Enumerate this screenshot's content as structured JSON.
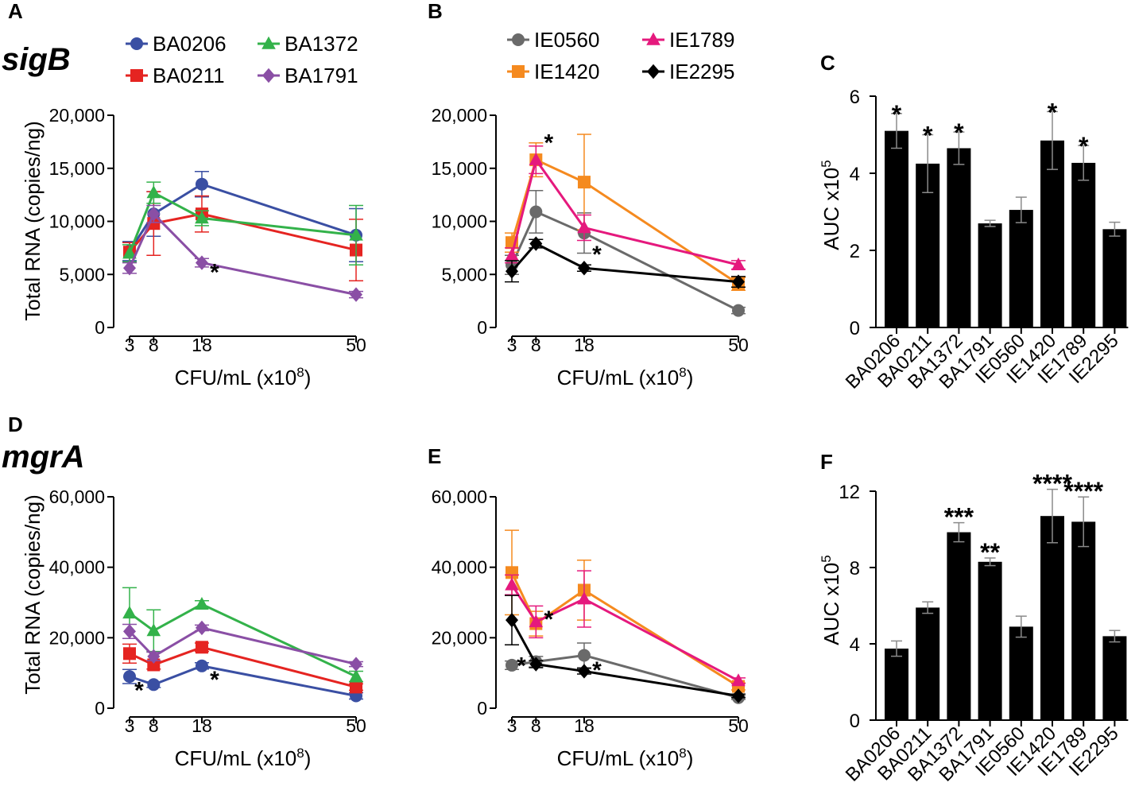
{
  "figure": {
    "row_labels": [
      "sigB",
      "mgrA"
    ],
    "colors": {
      "BA0206": "#3a4fa3",
      "BA0211": "#e52421",
      "BA1372": "#33b24a",
      "BA1791": "#8a4fa5",
      "IE0560": "#6a6a6a",
      "IE1420": "#f58a1f",
      "IE1789": "#e5197d",
      "IE2295": "#000000",
      "bar": "#000000"
    }
  },
  "chart_data": [
    {
      "id": "A",
      "letter": "A",
      "type": "line",
      "title": "",
      "xlabel": "CFU/mL (x10",
      "xlabel_sup": "8",
      "xlabel_end": ")",
      "ylabel": "Total RNA (copies/ng)",
      "x": [
        3,
        8,
        18,
        50
      ],
      "x_ticks": [
        "3",
        "8",
        "18",
        "50"
      ],
      "xlim": [
        3,
        50
      ],
      "ylim": [
        0,
        20000
      ],
      "y_ticks": [
        0,
        5000,
        10000,
        15000,
        20000
      ],
      "y_tick_labels": [
        "0",
        "5,000",
        "10,000",
        "15,000",
        "20,000"
      ],
      "legend": [
        "BA0206",
        "BA0211",
        "BA1372",
        "BA1791"
      ],
      "series": [
        {
          "name": "BA0206",
          "marker": "circle",
          "values": [
            7200,
            10700,
            13500,
            8700
          ],
          "err": [
            900,
            2100,
            1200,
            2500
          ]
        },
        {
          "name": "BA0211",
          "marker": "square",
          "values": [
            7100,
            9800,
            10700,
            7300
          ],
          "err": [
            900,
            3000,
            1700,
            2900
          ]
        },
        {
          "name": "BA1372",
          "marker": "triangle",
          "values": [
            7000,
            12700,
            10300,
            8700
          ],
          "err": [
            800,
            1000,
            700,
            2800
          ]
        },
        {
          "name": "BA1791",
          "marker": "diamond",
          "values": [
            5600,
            10700,
            6100,
            3100
          ],
          "err": [
            500,
            800,
            400,
            300
          ]
        }
      ],
      "annotations": [
        {
          "x": 18,
          "y": 6100,
          "text": "*"
        }
      ]
    },
    {
      "id": "B",
      "letter": "B",
      "type": "line",
      "title": "",
      "xlabel": "CFU/mL (x10",
      "xlabel_sup": "8",
      "xlabel_end": ")",
      "ylabel": "",
      "x": [
        3,
        8,
        18,
        50
      ],
      "x_ticks": [
        "3",
        "8",
        "18",
        "50"
      ],
      "xlim": [
        3,
        50
      ],
      "ylim": [
        0,
        20000
      ],
      "y_ticks": [
        0,
        5000,
        10000,
        15000,
        20000
      ],
      "y_tick_labels": [
        "0",
        "5,000",
        "10,000",
        "15,000",
        "20,000"
      ],
      "legend": [
        "IE0560",
        "IE1420",
        "IE1789",
        "IE2295"
      ],
      "series": [
        {
          "name": "IE0560",
          "marker": "circle",
          "values": [
            5900,
            10900,
            8900,
            1600
          ],
          "err": [
            900,
            2000,
            1900,
            300
          ]
        },
        {
          "name": "IE1420",
          "marker": "square",
          "values": [
            8000,
            15800,
            13700,
            4100
          ],
          "err": [
            900,
            1600,
            4500,
            600
          ]
        },
        {
          "name": "IE1789",
          "marker": "triangle",
          "values": [
            6800,
            15800,
            9400,
            5900
          ],
          "err": [
            700,
            1300,
            1200,
            400
          ]
        },
        {
          "name": "IE2295",
          "marker": "diamond",
          "values": [
            5300,
            7900,
            5600,
            4300
          ],
          "err": [
            1000,
            400,
            300,
            500
          ]
        }
      ],
      "annotations": [
        {
          "x": 8,
          "y": 18300,
          "text": "*"
        },
        {
          "x": 18,
          "y": 7800,
          "text": "*"
        }
      ]
    },
    {
      "id": "C",
      "letter": "C",
      "type": "bar",
      "title": "",
      "xlabel": "",
      "ylabel": "AUC x10",
      "ylabel_sup": "5",
      "categories": [
        "BA0206",
        "BA0211",
        "BA1372",
        "BA1791",
        "IE0560",
        "IE1420",
        "IE1789",
        "IE2295"
      ],
      "values": [
        5.1,
        4.25,
        4.65,
        2.7,
        3.05,
        4.85,
        4.27,
        2.55
      ],
      "err": [
        0.45,
        0.75,
        0.42,
        0.08,
        0.33,
        0.75,
        0.45,
        0.18
      ],
      "stars": [
        "*",
        "*",
        "*",
        "",
        "",
        "*",
        "*",
        ""
      ],
      "ylim": [
        0,
        6
      ],
      "y_ticks": [
        0,
        2,
        4,
        6
      ],
      "y_tick_labels": [
        "0",
        "2",
        "4",
        "6"
      ]
    },
    {
      "id": "D",
      "letter": "D",
      "type": "line",
      "title": "",
      "xlabel": "CFU/mL (x10",
      "xlabel_sup": "8",
      "xlabel_end": ")",
      "ylabel": "Total RNA (copies/ng)",
      "x": [
        3,
        8,
        18,
        50
      ],
      "x_ticks": [
        "3",
        "8",
        "18",
        "50"
      ],
      "xlim": [
        3,
        50
      ],
      "ylim": [
        0,
        60000
      ],
      "y_ticks": [
        0,
        20000,
        40000,
        60000
      ],
      "y_tick_labels": [
        "0",
        "20,000",
        "40,000",
        "60,000"
      ],
      "legend": [],
      "series": [
        {
          "name": "BA0206",
          "marker": "circle",
          "values": [
            9000,
            6700,
            12000,
            3500
          ],
          "err": [
            2000,
            800,
            900,
            900
          ]
        },
        {
          "name": "BA0211",
          "marker": "square",
          "values": [
            15500,
            12300,
            17300,
            6000
          ],
          "err": [
            2700,
            1200,
            1200,
            900
          ]
        },
        {
          "name": "BA1372",
          "marker": "triangle",
          "values": [
            27000,
            22000,
            29500,
            9000
          ],
          "err": [
            7200,
            5900,
            1000,
            1500
          ]
        },
        {
          "name": "BA1791",
          "marker": "diamond",
          "values": [
            21800,
            14700,
            22800,
            12500
          ],
          "err": [
            2000,
            1200,
            800,
            700
          ]
        }
      ],
      "annotations": [
        {
          "x": 3,
          "y": 7800,
          "text": "*"
        },
        {
          "x": 18,
          "y": 10800,
          "text": "*"
        }
      ]
    },
    {
      "id": "E",
      "letter": "E",
      "type": "line",
      "title": "",
      "xlabel": "CFU/mL (x10",
      "xlabel_sup": "8",
      "xlabel_end": ")",
      "ylabel": "",
      "x": [
        3,
        8,
        18,
        50
      ],
      "x_ticks": [
        "3",
        "8",
        "18",
        "50"
      ],
      "xlim": [
        3,
        50
      ],
      "ylim": [
        0,
        60000
      ],
      "y_ticks": [
        0,
        20000,
        40000,
        60000
      ],
      "y_tick_labels": [
        "0",
        "20,000",
        "40,000",
        "60,000"
      ],
      "legend": [],
      "series": [
        {
          "name": "IE0560",
          "marker": "circle",
          "values": [
            12200,
            13200,
            15000,
            3000
          ],
          "err": [
            1200,
            1500,
            3500,
            500
          ]
        },
        {
          "name": "IE1420",
          "marker": "square",
          "values": [
            38500,
            24000,
            33500,
            6200
          ],
          "err": [
            12000,
            3500,
            8500,
            1000
          ]
        },
        {
          "name": "IE1789",
          "marker": "triangle",
          "values": [
            35000,
            24500,
            31000,
            7800
          ],
          "err": [
            2800,
            4500,
            8000,
            800
          ]
        },
        {
          "name": "IE2295",
          "marker": "diamond",
          "values": [
            25000,
            12500,
            10500,
            3500
          ],
          "err": [
            7000,
            1000,
            800,
            500
          ]
        }
      ],
      "annotations": [
        {
          "x": 3,
          "y": 14800,
          "text": "*"
        },
        {
          "x": 8,
          "y": 28000,
          "text": "*"
        },
        {
          "x": 18,
          "y": 13500,
          "text": "*"
        }
      ]
    },
    {
      "id": "F",
      "letter": "F",
      "type": "bar",
      "title": "",
      "xlabel": "",
      "ylabel": "AUC x10",
      "ylabel_sup": "5",
      "categories": [
        "BA0206",
        "BA0211",
        "BA1372",
        "BA1791",
        "IE0560",
        "IE1420",
        "IE1789",
        "IE2295"
      ],
      "values": [
        3.75,
        5.9,
        9.85,
        8.3,
        4.9,
        10.7,
        10.4,
        4.4
      ],
      "err": [
        0.4,
        0.3,
        0.5,
        0.2,
        0.55,
        1.4,
        1.3,
        0.3
      ],
      "stars": [
        "",
        "",
        "***",
        "**",
        "",
        "****",
        "****",
        ""
      ],
      "ylim": [
        0,
        12
      ],
      "y_ticks": [
        0,
        4,
        8,
        12
      ],
      "y_tick_labels": [
        "0",
        "4",
        "8",
        "12"
      ]
    }
  ]
}
